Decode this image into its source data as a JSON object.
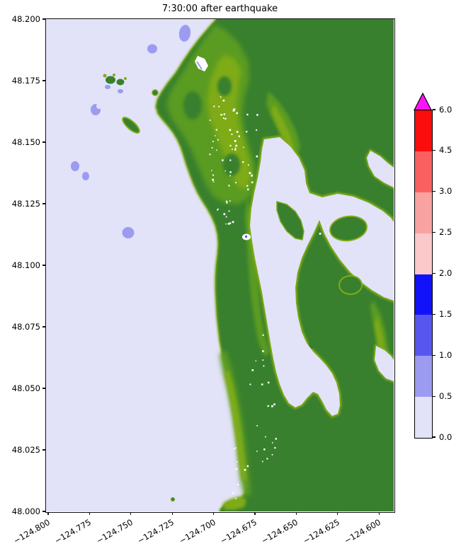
{
  "title": "7:30:00 after earthquake",
  "axes": {
    "y_tick_labels": [
      "48.200",
      "48.175",
      "48.150",
      "48.125",
      "48.100",
      "48.075",
      "48.050",
      "48.025",
      "48.000"
    ],
    "x_tick_labels": [
      "−124.800",
      "−124.775",
      "−124.750",
      "−124.725",
      "−124.700",
      "−124.675",
      "−124.650",
      "−124.625",
      "−124.600"
    ]
  },
  "colorbar": {
    "tick_labels_top_to_bottom": [
      "6.0",
      "4.5",
      "3.0",
      "2.5",
      "2.0",
      "1.5",
      "1.0",
      "0.5",
      "0.0"
    ],
    "segment_colors_bottom_to_top": [
      "#e2e2f8",
      "#9b9bf1",
      "#5757f0",
      "#1212fa",
      "#fbc9c9",
      "#f9a2a2",
      "#fa6060",
      "#fb0d0d"
    ],
    "over_color": "#fa14fa"
  },
  "colors": {
    "ocean": "#e2e2f8",
    "shallow": "#9b9bf1",
    "lakeblue": "#5757f0",
    "land": "#38802e",
    "green_mid": "#5a9b20",
    "green_light": "#7fab17"
  },
  "chart_data": {
    "type": "heatmap",
    "title": "7:30:00 after earthquake",
    "xlabel": "",
    "ylabel": "",
    "x_tick_values": [
      -124.8,
      -124.775,
      -124.75,
      -124.725,
      -124.7,
      -124.675,
      -124.65,
      -124.625,
      -124.6
    ],
    "y_tick_values": [
      48.2,
      48.175,
      48.15,
      48.125,
      48.1,
      48.075,
      48.05,
      48.025,
      48.0
    ],
    "xlim": [
      -124.801,
      -124.593
    ],
    "ylim": [
      48.0,
      48.2
    ],
    "grid": false,
    "legend_position": "right",
    "colorbar": {
      "extend": "max",
      "spacing": "uniform",
      "boundaries": [
        0.0,
        0.5,
        1.0,
        1.5,
        2.0,
        2.5,
        3.0,
        4.5,
        6.0
      ],
      "colors": [
        "#e2e2f8",
        "#9b9bf1",
        "#5757f0",
        "#1212fa",
        "#fbc9c9",
        "#f9a2a2",
        "#fa6060",
        "#fb0d0d"
      ],
      "over_color": "#fa14fa"
    },
    "regions": [
      {
        "name": "open-ocean",
        "value_range": [
          0.0,
          0.5
        ],
        "color": "#e2e2f8"
      },
      {
        "name": "offshore-amplitude-patches",
        "value_range": [
          0.5,
          1.0
        ],
        "color": "#9b9bf1"
      },
      {
        "name": "inland-lake-and-lowland-water",
        "value_range": [
          0.0,
          0.5
        ],
        "color": "#e2e2f8"
      },
      {
        "name": "land-high",
        "color": "#38802e"
      },
      {
        "name": "land-low-coastal",
        "color": "#7fab17"
      }
    ]
  }
}
